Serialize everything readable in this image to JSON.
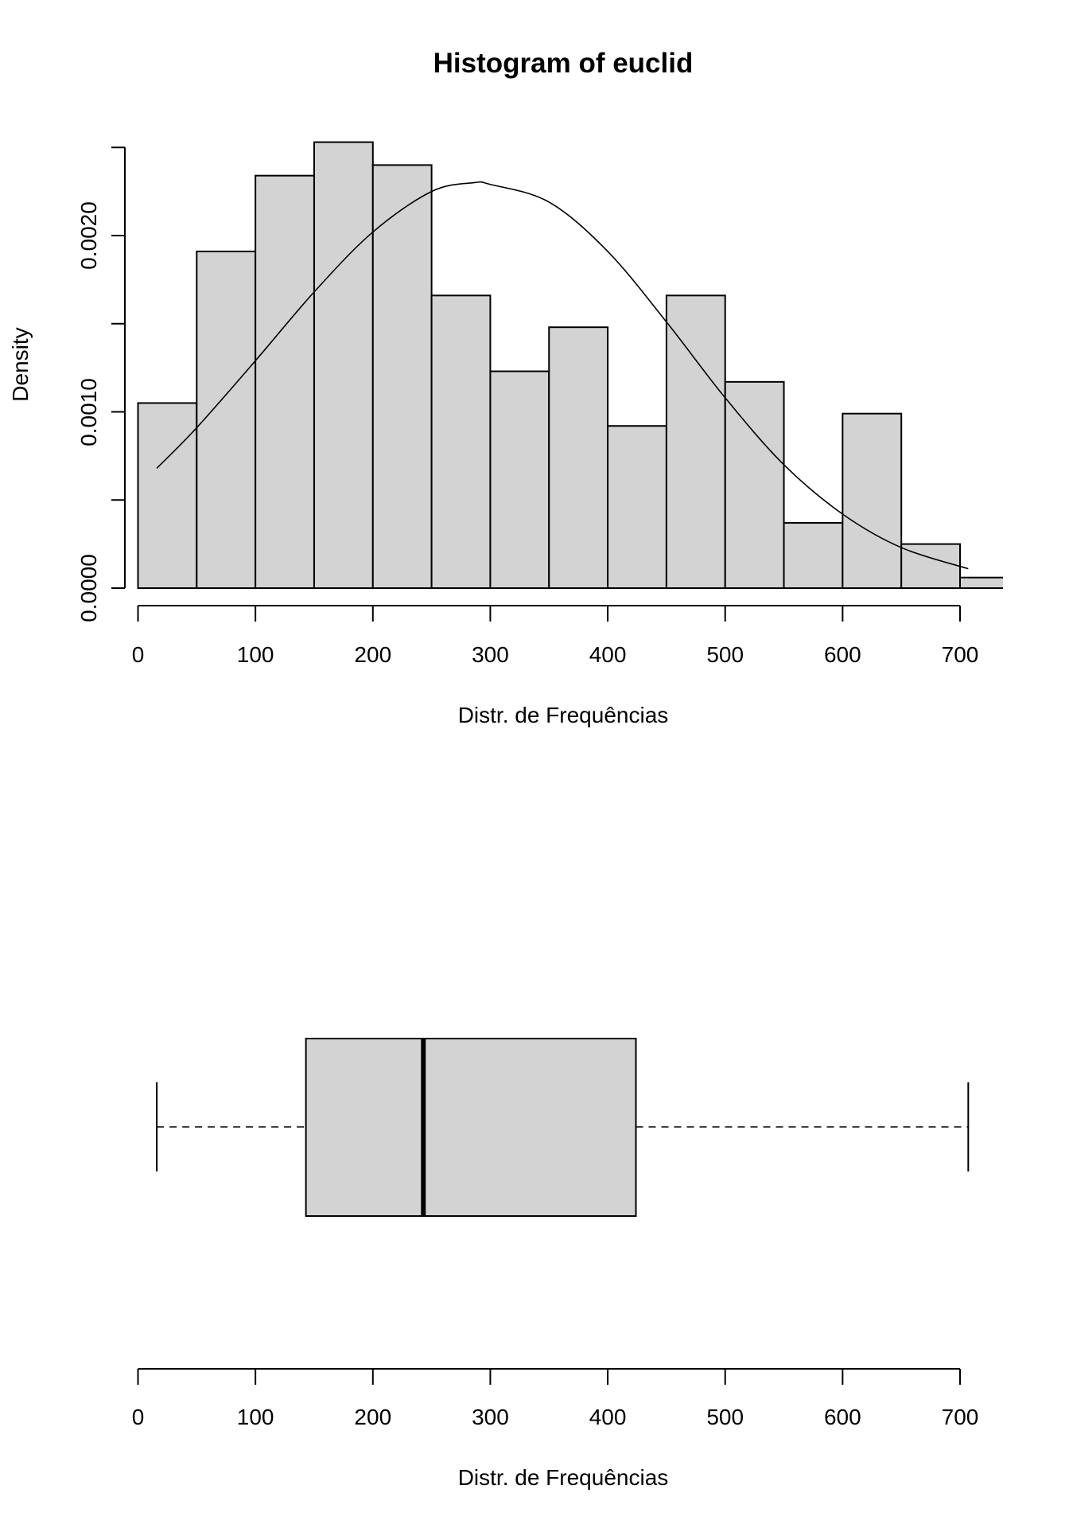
{
  "chart_data": [
    {
      "type": "bar",
      "subtype": "histogram",
      "title": "Histogram of euclid",
      "xlabel": "Distr. de Frequências",
      "ylabel": "Density",
      "bin_edges": [
        0,
        50,
        100,
        150,
        200,
        250,
        300,
        350,
        400,
        450,
        500,
        550,
        600,
        650,
        700,
        750
      ],
      "categories": [
        "0-50",
        "50-100",
        "100-150",
        "150-200",
        "200-250",
        "250-300",
        "300-350",
        "350-400",
        "400-450",
        "450-500",
        "500-550",
        "550-600",
        "600-650",
        "650-700",
        "700-750"
      ],
      "values": [
        0.00105,
        0.00191,
        0.00234,
        0.00253,
        0.0024,
        0.00166,
        0.00123,
        0.00148,
        0.00092,
        0.00166,
        0.00117,
        0.00037,
        0.00099,
        0.00025,
        6e-05
      ],
      "xticks": [
        0,
        100,
        200,
        300,
        400,
        500,
        600,
        700
      ],
      "yticks": [
        0.0,
        0.0005,
        0.001,
        0.0015,
        0.002,
        0.0025
      ],
      "ytick_labels": [
        "0.0000",
        "",
        "0.0010",
        "",
        "0.0020",
        ""
      ],
      "xlim": [
        0,
        735
      ],
      "ylim": [
        0,
        0.0025
      ],
      "overlay_curve": {
        "type": "line",
        "name": "normal density",
        "x": [
          16,
          50,
          100,
          150,
          200,
          250,
          286,
          300,
          350,
          400,
          450,
          500,
          550,
          600,
          650,
          707
        ],
        "y": [
          0.00068,
          0.00091,
          0.00129,
          0.00168,
          0.00202,
          0.00225,
          0.0023,
          0.00229,
          0.00219,
          0.00191,
          0.00151,
          0.00108,
          0.0007,
          0.00042,
          0.00023,
          0.00011
        ]
      },
      "fill_color": "#d3d3d3",
      "grid": false
    },
    {
      "type": "boxplot",
      "orientation": "horizontal",
      "xlabel": "Distr. de Frequências",
      "xticks": [
        0,
        100,
        200,
        300,
        400,
        500,
        600,
        700
      ],
      "min": 16,
      "q1": 143,
      "median": 243,
      "q3": 424,
      "max": 707,
      "fill_color": "#d3d3d3"
    }
  ],
  "hist": {
    "title": "Histogram of euclid",
    "xlabel": "Distr. de Frequências",
    "ylabel": "Density",
    "xtick_labels": [
      "0",
      "100",
      "200",
      "300",
      "400",
      "500",
      "600",
      "700"
    ],
    "ytick_labels": [
      "0.0000",
      "0.0010",
      "0.0020"
    ]
  },
  "box": {
    "xlabel": "Distr. de Frequências",
    "xtick_labels": [
      "0",
      "100",
      "200",
      "300",
      "400",
      "500",
      "600",
      "700"
    ]
  }
}
